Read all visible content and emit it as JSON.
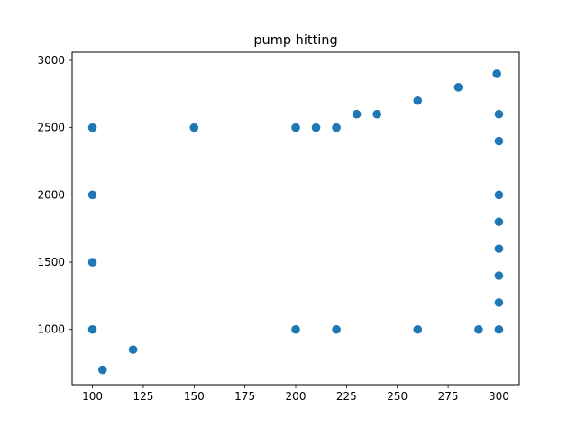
{
  "chart_data": {
    "type": "scatter",
    "title": "pump hitting",
    "xlabel": "",
    "ylabel": "",
    "xlim": [
      90,
      310
    ],
    "ylim": [
      590,
      3060
    ],
    "xticks": [
      100,
      125,
      150,
      175,
      200,
      225,
      250,
      275,
      300
    ],
    "yticks": [
      1000,
      1500,
      2000,
      2500,
      3000
    ],
    "grid": false,
    "marker_color": "#1f77b4",
    "points": [
      {
        "x": 100,
        "y": 2500
      },
      {
        "x": 100,
        "y": 2000
      },
      {
        "x": 100,
        "y": 1500
      },
      {
        "x": 100,
        "y": 1000
      },
      {
        "x": 105,
        "y": 700
      },
      {
        "x": 120,
        "y": 850
      },
      {
        "x": 150,
        "y": 2500
      },
      {
        "x": 200,
        "y": 2500
      },
      {
        "x": 210,
        "y": 2500
      },
      {
        "x": 220,
        "y": 2500
      },
      {
        "x": 230,
        "y": 2600
      },
      {
        "x": 240,
        "y": 2600
      },
      {
        "x": 260,
        "y": 2700
      },
      {
        "x": 280,
        "y": 2800
      },
      {
        "x": 299,
        "y": 2900
      },
      {
        "x": 300,
        "y": 2600
      },
      {
        "x": 300,
        "y": 2400
      },
      {
        "x": 300,
        "y": 2000
      },
      {
        "x": 300,
        "y": 1800
      },
      {
        "x": 300,
        "y": 1600
      },
      {
        "x": 300,
        "y": 1400
      },
      {
        "x": 300,
        "y": 1200
      },
      {
        "x": 300,
        "y": 1000
      },
      {
        "x": 290,
        "y": 1000
      },
      {
        "x": 260,
        "y": 1000
      },
      {
        "x": 220,
        "y": 1000
      },
      {
        "x": 200,
        "y": 1000
      }
    ]
  }
}
